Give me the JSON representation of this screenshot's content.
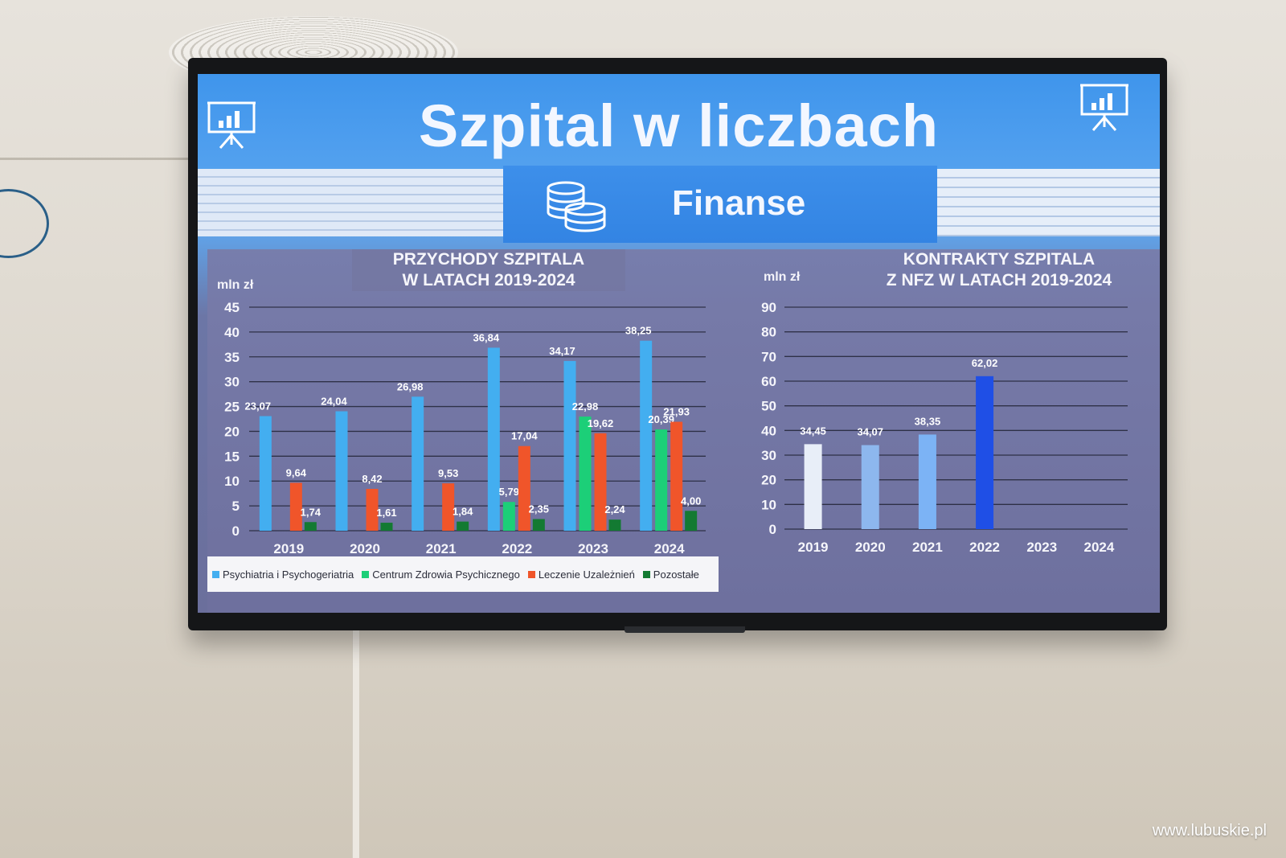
{
  "slide": {
    "title": "Szpital w liczbach",
    "subtitle": "Finanse"
  },
  "icons": {
    "header_left": "presentation-chart-icon",
    "header_right": "presentation-chart-icon",
    "finance": "coins-icon"
  },
  "colors": {
    "psychiatry": "#43aef0",
    "mental_health_center": "#1ccf78",
    "addiction": "#f0552a",
    "other": "#137a32",
    "nfz_bars": [
      "#e8eef8",
      "#8db7ee",
      "#7cb3f5",
      "#1f4fe6"
    ]
  },
  "watermark": "www.lubuskie.pl",
  "chart_data": [
    {
      "type": "bar",
      "title": "PRZYCHODY SZPITALA\nW LATACH 2019-2024",
      "title_lines": [
        "PRZYCHODY SZPITALA",
        "W LATACH 2019-2024"
      ],
      "ylabel": "mln zł",
      "ylim": [
        0,
        45
      ],
      "yticks": [
        0,
        5,
        10,
        15,
        20,
        25,
        30,
        35,
        40,
        45
      ],
      "grid": true,
      "legend": "bottom",
      "categories": [
        "2019",
        "2020",
        "2021",
        "2022",
        "2023",
        "2024"
      ],
      "series": [
        {
          "name": "Psychiatria i Psychogeriatria",
          "color": "#43aef0",
          "values": [
            23.07,
            24.04,
            26.98,
            36.84,
            34.17,
            38.25
          ],
          "labels": [
            "23,07",
            "24,04",
            "26,98",
            "36,84",
            "34,17",
            "38,25"
          ]
        },
        {
          "name": "Centrum Zdrowia Psychicznego",
          "color": "#1ccf78",
          "values": [
            null,
            null,
            null,
            5.79,
            22.98,
            20.39
          ],
          "labels": [
            "",
            "",
            "",
            "5,79",
            "22,98",
            "20,39"
          ]
        },
        {
          "name": "Leczenie Uzależnień",
          "color": "#f0552a",
          "values": [
            9.64,
            8.42,
            9.53,
            17.04,
            19.62,
            21.93
          ],
          "labels": [
            "9,64",
            "8,42",
            "9,53",
            "17,04",
            "19,62",
            "21,93"
          ]
        },
        {
          "name": "Pozostałe",
          "color": "#137a32",
          "values": [
            1.74,
            1.61,
            1.84,
            2.35,
            2.24,
            4.0
          ],
          "labels": [
            "1,74",
            "1,61",
            "1,84",
            "2,35",
            "2,24",
            "4,00"
          ]
        }
      ]
    },
    {
      "type": "bar",
      "title": "KONTRAKTY SZPITALA\nZ NFZ W LATACH 2019-2024",
      "title_lines": [
        "KONTRAKTY SZPITALA",
        "Z NFZ W LATACH 2019-2024"
      ],
      "ylabel": "mln zł",
      "ylim": [
        0,
        90
      ],
      "yticks": [
        0,
        10,
        20,
        30,
        40,
        50,
        60,
        70,
        80,
        90
      ],
      "grid": true,
      "categories": [
        "2019",
        "2020",
        "2021",
        "2022",
        "2023",
        "2024"
      ],
      "values": [
        34.45,
        34.07,
        38.35,
        62.02,
        null,
        null
      ],
      "labels": [
        "34,45",
        "34,07",
        "38,35",
        "62,02",
        "",
        ""
      ]
    }
  ]
}
